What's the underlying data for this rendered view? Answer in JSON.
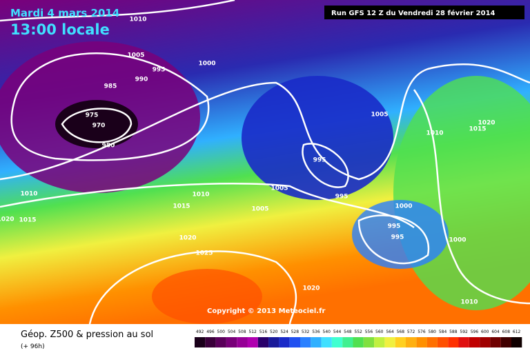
{
  "header": {
    "date": "Mardi 4 mars 2014",
    "time": "13:00 locale",
    "run": "Run GFS 12 Z du Vendredi 28 février 2014"
  },
  "isobar_labels": [
    1010,
    1005,
    1000,
    995,
    990,
    985,
    975,
    970,
    980,
    1005,
    1010,
    1015,
    1020,
    995,
    995,
    1005,
    1010,
    1015,
    1005,
    1000,
    995,
    995,
    1000,
    1010,
    1020,
    1015,
    1020,
    1025,
    1020,
    1010
  ],
  "copyright": "Copyright © 2013 Meteociel.fr",
  "legend": {
    "title": "Géop. Z500 & pression au sol",
    "lead": "(+ 96h)",
    "values": [
      492,
      496,
      500,
      504,
      508,
      512,
      516,
      520,
      524,
      528,
      532,
      536,
      540,
      544,
      548,
      552,
      556,
      560,
      564,
      568,
      572,
      576,
      580,
      584,
      588,
      592,
      596,
      600,
      604,
      608,
      612
    ],
    "colors": [
      "#1a001a",
      "#3a003a",
      "#5a005a",
      "#780078",
      "#960096",
      "#b000b0",
      "#2a006a",
      "#1a1a9a",
      "#1a2ac8",
      "#2050f0",
      "#2a80ff",
      "#30b0ff",
      "#40e0ff",
      "#40ffd0",
      "#40f090",
      "#50e050",
      "#80e040",
      "#c0f040",
      "#f0f040",
      "#ffd020",
      "#ffb010",
      "#ff9000",
      "#ff7000",
      "#ff5000",
      "#ff3000",
      "#e01010",
      "#c00000",
      "#a00000",
      "#700000",
      "#400000",
      "#100000"
    ]
  }
}
